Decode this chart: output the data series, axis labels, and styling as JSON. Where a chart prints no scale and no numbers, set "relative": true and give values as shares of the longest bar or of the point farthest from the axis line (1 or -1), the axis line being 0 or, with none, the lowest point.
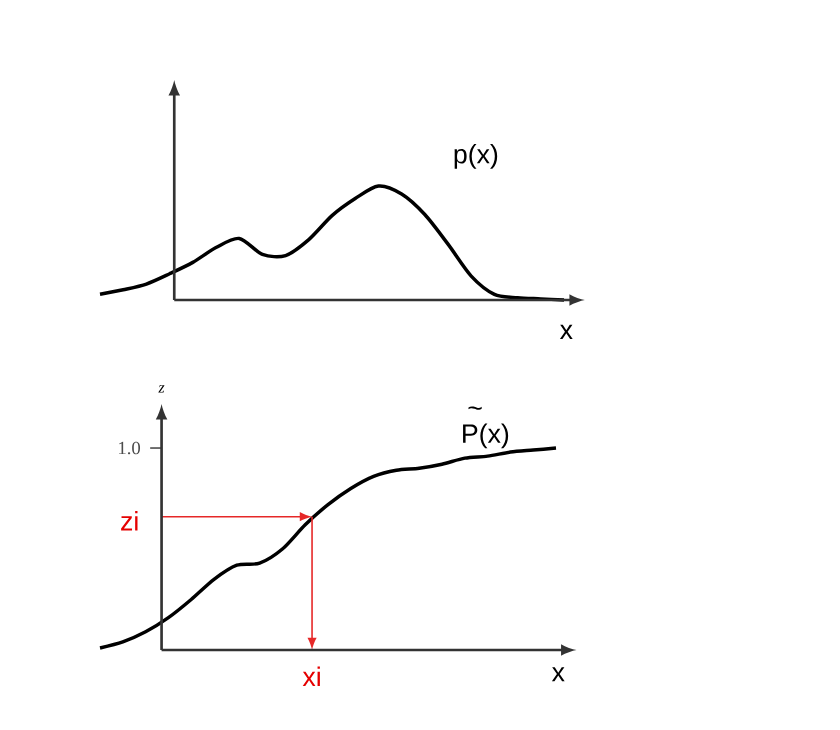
{
  "chart_data": [
    {
      "type": "line",
      "relative": true,
      "xlabel": "x",
      "categories": [
        null,
        null,
        null,
        null,
        null,
        null,
        null,
        null,
        null,
        null,
        null,
        null,
        null,
        null,
        null,
        null,
        null,
        null,
        null,
        null,
        null
      ],
      "series": [
        {
          "name": "p(x)",
          "color": "#000000",
          "values": [
            0.05,
            0.09,
            0.14,
            0.23,
            0.33,
            0.46,
            0.54,
            0.4,
            0.39,
            0.53,
            0.74,
            0.89,
            1.0,
            0.93,
            0.75,
            0.49,
            0.21,
            0.05,
            0.02,
            0.01,
            0
          ]
        }
      ]
    },
    {
      "type": "line",
      "relative": true,
      "xlabel": "x",
      "ylabel": "z",
      "annotations": [
        "1.0",
        "zi",
        "xi",
        "~"
      ],
      "categories": [
        null,
        null,
        null,
        null,
        null,
        null,
        null,
        null,
        null,
        null,
        null,
        null,
        null,
        null,
        null,
        null,
        null,
        null,
        null,
        null,
        null
      ],
      "series": [
        {
          "name": "P(x)",
          "color": "#000000",
          "values": [
            0.01,
            0.04,
            0.09,
            0.16,
            0.25,
            0.35,
            0.42,
            0.43,
            0.5,
            0.62,
            0.72,
            0.8,
            0.86,
            0.89,
            0.9,
            0.92,
            0.95,
            0.96,
            0.98,
            0.99,
            1.0
          ]
        }
      ]
    }
  ]
}
